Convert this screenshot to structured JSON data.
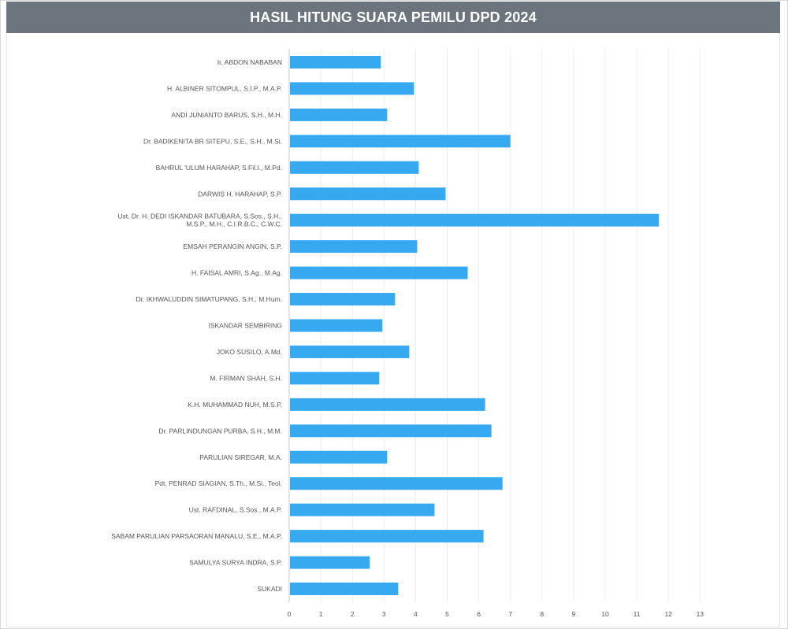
{
  "header": {
    "title": "HASIL HITUNG SUARA PEMILU DPD 2024"
  },
  "colors": {
    "header_bg": "#6c757d",
    "bar": "#36a9f0",
    "grid": "#ececec"
  },
  "chart_data": {
    "type": "bar",
    "orientation": "horizontal",
    "title": "HASIL HITUNG SUARA PEMILU DPD 2024",
    "categories": [
      [
        "Ir. ABDON NABABAN"
      ],
      [
        "H. ALBINER SITOMPUL, S.I.P., M.A.P."
      ],
      [
        "ANDI JUNIANTO BARUS, S.H., M.H."
      ],
      [
        "Dr. BADIKENITA BR SITEPU, S.E., S.H., M.Si."
      ],
      [
        "BAHRUL 'ULUM HARAHAP, S.Fil.I., M.Pd."
      ],
      [
        "DARWIS H. HARAHAP, S.P."
      ],
      [
        "Ust. Dr. H. DEDI ISKANDAR BATUBARA, S.Sos., S.H.,",
        "M.S.P., M.H., C.I.R.B.C., C.W.C."
      ],
      [
        "EMSAH PERANGIN ANGIN, S.P."
      ],
      [
        "H. FAISAL AMRI, S.Ag., M.Ag."
      ],
      [
        "Dr. IKHWALUDDIN SIMATUPANG, S.H., M.Hum."
      ],
      [
        "ISKANDAR SEMBIRING"
      ],
      [
        "JOKO SUSILO, A.Md."
      ],
      [
        "M. FIRMAN SHAH, S.H."
      ],
      [
        "K.H. MUHAMMAD NUH, M.S.P."
      ],
      [
        "Dr. PARLINDUNGAN PURBA, S.H., M.M."
      ],
      [
        "PARULIAN SIREGAR, M.A."
      ],
      [
        "Pdt. PENRAD SIAGIAN, S.Th., M.Si., Teol."
      ],
      [
        "Ust. RAFDINAL, S.Sos., M.A.P."
      ],
      [
        "SABAM PARULIAN PARSAORAN MANALU, S.E., M.A.P."
      ],
      [
        "SAMULYA SURYA INDRA, S.P."
      ],
      [
        "SUKADI"
      ]
    ],
    "values": [
      2.9,
      3.95,
      3.1,
      7.0,
      4.1,
      4.95,
      11.7,
      4.05,
      5.65,
      3.35,
      2.95,
      3.8,
      2.85,
      6.2,
      6.4,
      3.1,
      6.75,
      4.6,
      6.15,
      2.55,
      3.45
    ],
    "ticks": [
      0,
      1,
      2,
      3,
      4,
      5,
      6,
      7,
      8,
      9,
      10,
      11,
      12,
      13
    ],
    "xlim": [
      0,
      13
    ],
    "grid": true
  }
}
